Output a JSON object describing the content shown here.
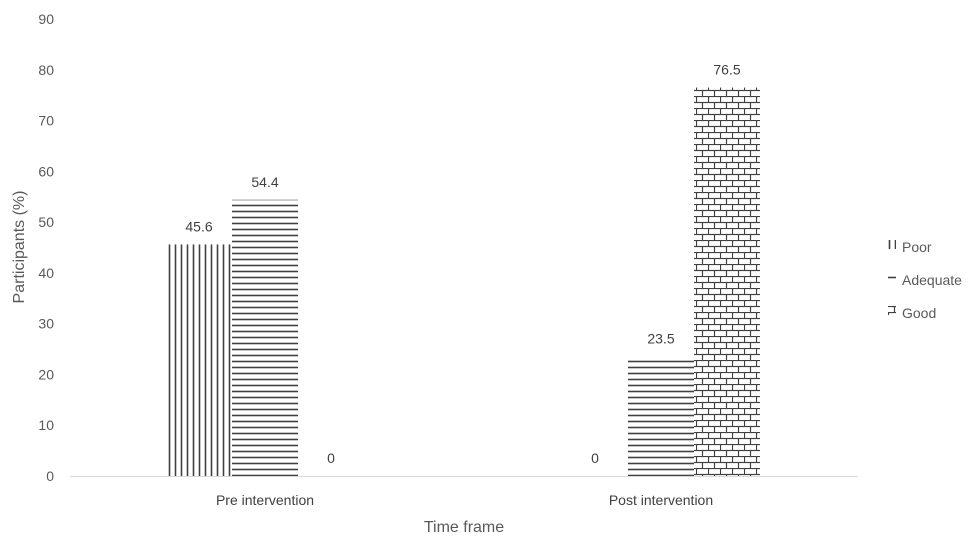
{
  "chart_data": {
    "type": "bar",
    "categories": [
      "Pre intervention",
      "Post intervention"
    ],
    "series": [
      {
        "name": "Poor",
        "values": [
          45.6,
          0
        ],
        "pattern": "vertical-lines"
      },
      {
        "name": "Adequate",
        "values": [
          54.4,
          23.5
        ],
        "pattern": "horizontal-lines"
      },
      {
        "name": "Good",
        "values": [
          0,
          76.5
        ],
        "pattern": "brick"
      }
    ],
    "xlabel": "Time frame",
    "ylabel": "Participants (%)",
    "ylim": [
      0,
      90
    ],
    "yticks": [
      0,
      10,
      20,
      30,
      40,
      50,
      60,
      70,
      80,
      90
    ],
    "data_labels": true,
    "grid": false,
    "legend_position": "right",
    "colors": {
      "pattern_stroke": "#404040",
      "axis": "#d9d9d9",
      "text": "#595959"
    }
  }
}
